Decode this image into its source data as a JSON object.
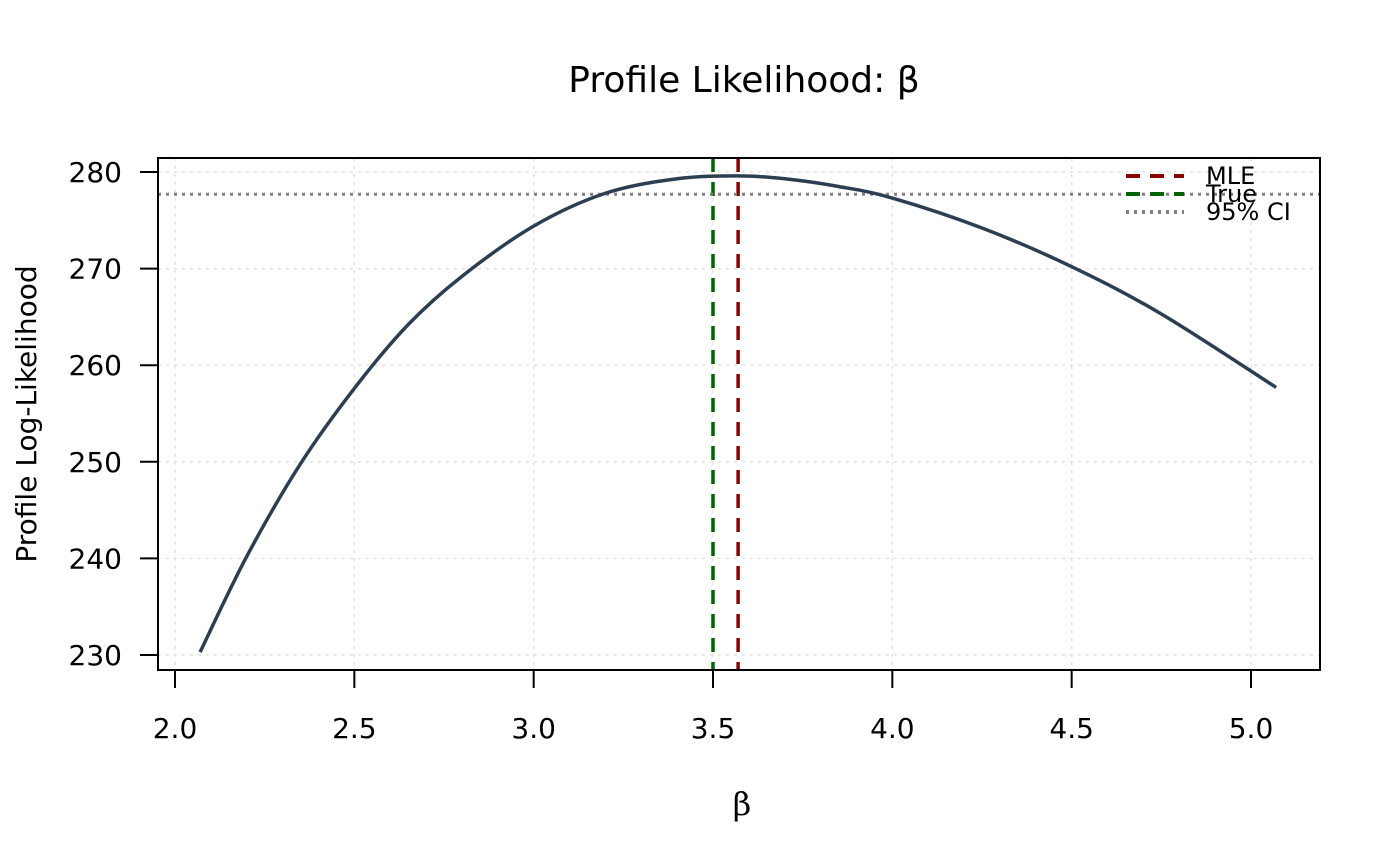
{
  "chart_data": {
    "type": "line",
    "title": "Profile Likelihood: β",
    "xlabel": "β",
    "ylabel": "Profile Log-Likelihood",
    "xlim": [
      2.07,
      5.07
    ],
    "ylim": [
      228.5,
      281.5
    ],
    "x_ticks": [
      "2.0",
      "2.5",
      "3.0",
      "3.5",
      "4.0",
      "4.5",
      "5.0"
    ],
    "x_tick_values": [
      2.0,
      2.5,
      3.0,
      3.5,
      4.0,
      4.5,
      5.0
    ],
    "y_ticks": [
      "230",
      "240",
      "250",
      "260",
      "270",
      "280"
    ],
    "y_tick_values": [
      230,
      240,
      250,
      260,
      270,
      280
    ],
    "grid": true,
    "legend_position": "top-right",
    "series": [
      {
        "color": "#2c3e50",
        "x": [
          2.07,
          2.2,
          2.35,
          2.5,
          2.65,
          2.8,
          3.0,
          3.2,
          3.4,
          3.57,
          3.7,
          3.85,
          4.0,
          4.25,
          4.5,
          4.75,
          5.07
        ],
        "y": [
          230.3,
          240.2,
          249.8,
          257.6,
          264.2,
          269.2,
          274.4,
          277.8,
          279.3,
          279.6,
          279.3,
          278.5,
          277.3,
          274.2,
          270.2,
          265.3,
          257.7
        ]
      }
    ],
    "reference_lines": [
      {
        "label": "MLE",
        "orientation": "vertical",
        "value": 3.57,
        "color": "#8b0000",
        "style": "dashed"
      },
      {
        "label": "True",
        "orientation": "vertical",
        "value": 3.5,
        "color": "#006400",
        "style": "dashed"
      },
      {
        "label": "95% CI",
        "orientation": "horizontal",
        "value": 277.7,
        "color": "#808080",
        "style": "dotted"
      }
    ]
  }
}
